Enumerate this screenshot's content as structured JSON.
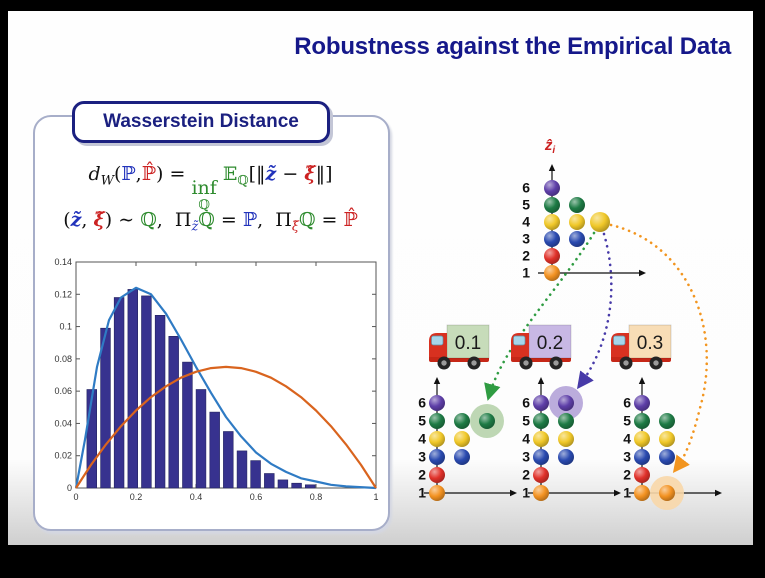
{
  "title": "Robustness against the Empirical Data",
  "panel": {
    "heading": "Wasserstein Distance",
    "formula_line1": [
      {
        "t": "d",
        "c": "#111111",
        "i": 1
      },
      {
        "t": "W",
        "c": "#111111",
        "sub": 1,
        "i": 1
      },
      {
        "t": "(",
        "c": "#111111"
      },
      {
        "t": "ℙ",
        "c": "#2233bb"
      },
      {
        "t": ",",
        "c": "#111111"
      },
      {
        "t": "ℙ̂",
        "c": "#cc2222"
      },
      {
        "t": ")",
        "c": "#111111"
      },
      {
        "t": " = ",
        "c": "#111111"
      },
      {
        "t": "inf",
        "c": "#2e8b2e",
        "under": "ℚ"
      },
      {
        "t": " 𝔼",
        "c": "#2e8b2e"
      },
      {
        "t": "ℚ",
        "c": "#2e8b2e",
        "sub": 1
      },
      {
        "t": "[‖",
        "c": "#111111"
      },
      {
        "t": "z̃",
        "c": "#2233bb",
        "i": 1,
        "b": 1
      },
      {
        "t": " − ",
        "c": "#111111"
      },
      {
        "t": "ξ̃",
        "c": "#cc2222",
        "i": 1,
        "b": 1
      },
      {
        "t": "‖]",
        "c": "#111111"
      }
    ],
    "formula_line2": [
      {
        "t": "(",
        "c": "#111111"
      },
      {
        "t": "z̃",
        "c": "#2233bb",
        "i": 1,
        "b": 1
      },
      {
        "t": ", ",
        "c": "#111111"
      },
      {
        "t": "ξ̃",
        "c": "#cc2222",
        "i": 1,
        "b": 1
      },
      {
        "t": ") ∼ ",
        "c": "#111111"
      },
      {
        "t": "ℚ",
        "c": "#2e8b2e"
      },
      {
        "t": ",  ",
        "c": "#111111"
      },
      {
        "t": "Π",
        "c": "#111111"
      },
      {
        "t": "z̃",
        "c": "#2233bb",
        "sub": 1,
        "i": 1
      },
      {
        "t": "ℚ",
        "c": "#2e8b2e"
      },
      {
        "t": " = ",
        "c": "#111111"
      },
      {
        "t": "ℙ",
        "c": "#2233bb"
      },
      {
        "t": ",  ",
        "c": "#111111"
      },
      {
        "t": "Π",
        "c": "#111111"
      },
      {
        "t": "ξ̃",
        "c": "#cc2222",
        "sub": 1,
        "i": 1
      },
      {
        "t": "ℚ",
        "c": "#2e8b2e"
      },
      {
        "t": " = ",
        "c": "#111111"
      },
      {
        "t": "ℙ̂",
        "c": "#cc2222"
      }
    ]
  },
  "chart_data": {
    "type": "bar",
    "title": "",
    "xlabel": "",
    "ylabel": "",
    "xlim": [
      0,
      1
    ],
    "ylim": [
      0,
      0.14
    ],
    "xticks": [
      "0",
      "0.2",
      "0.4",
      "0.6",
      "0.8",
      "1"
    ],
    "yticks": [
      "0",
      "0.02",
      "0.04",
      "0.06",
      "0.08",
      "0.1",
      "0.12",
      "0.14"
    ],
    "grid": false,
    "legend": "none",
    "bars": {
      "color": "#37328f",
      "bin_start": 0.03,
      "bin_width": 0.0455,
      "bar_frac": 0.72,
      "values": [
        0.061,
        0.099,
        0.118,
        0.123,
        0.119,
        0.107,
        0.094,
        0.078,
        0.061,
        0.047,
        0.035,
        0.023,
        0.017,
        0.009,
        0.005,
        0.003,
        0.002
      ]
    },
    "series": [
      {
        "name": "empirical-density-curve",
        "color": "#2f7bc4",
        "x": [
          0,
          0.03,
          0.07,
          0.11,
          0.15,
          0.2,
          0.25,
          0.3,
          0.35,
          0.4,
          0.45,
          0.5,
          0.55,
          0.6,
          0.65,
          0.7,
          0.75,
          0.8,
          0.85,
          0.9,
          1
        ],
        "y": [
          0,
          0.03,
          0.075,
          0.104,
          0.118,
          0.124,
          0.12,
          0.108,
          0.092,
          0.075,
          0.059,
          0.044,
          0.032,
          0.022,
          0.015,
          0.01,
          0.006,
          0.004,
          0.002,
          0.001,
          0
        ]
      },
      {
        "name": "alternative-density-curve",
        "color": "#d9641e",
        "x": [
          0,
          0.05,
          0.1,
          0.15,
          0.2,
          0.25,
          0.3,
          0.35,
          0.4,
          0.45,
          0.5,
          0.55,
          0.6,
          0.65,
          0.7,
          0.75,
          0.8,
          0.85,
          0.9,
          0.95,
          1
        ],
        "y": [
          0,
          0.0143,
          0.027,
          0.0383,
          0.048,
          0.0563,
          0.063,
          0.0683,
          0.072,
          0.0743,
          0.075,
          0.0743,
          0.072,
          0.0683,
          0.063,
          0.0563,
          0.048,
          0.0383,
          0.027,
          0.0143,
          0
        ]
      }
    ]
  },
  "diagram": {
    "axis_label": {
      "main": "ẑ",
      "sub": "i",
      "color": "#cc2222"
    },
    "levels": [
      "6",
      "5",
      "4",
      "3",
      "2",
      "1"
    ],
    "dot_colors": {
      "purple": "#5e3fa8",
      "green": "#1e7b45",
      "yellow": "#f0c829",
      "blue": "#2a4ab0",
      "red": "#e0312a",
      "orange": "#f39221"
    },
    "top_plot": {
      "points": [
        [
          1,
          6,
          "purple"
        ],
        [
          1,
          5,
          "green"
        ],
        [
          1,
          4,
          "yellow"
        ],
        [
          1,
          3,
          "blue"
        ],
        [
          1,
          2,
          "red"
        ],
        [
          1,
          1,
          "orange"
        ],
        [
          2,
          5,
          "green"
        ],
        [
          2,
          4,
          "yellow"
        ],
        [
          2,
          3,
          "blue"
        ],
        [
          3,
          4,
          "yellow"
        ]
      ]
    },
    "trucks": [
      {
        "label": "0.1",
        "box": "#c7dcba"
      },
      {
        "label": "0.2",
        "box": "#c8b8e4"
      },
      {
        "label": "0.3",
        "box": "#f8ddb6"
      }
    ],
    "bottom_plots": [
      {
        "points": [
          [
            1,
            6,
            "purple"
          ],
          [
            1,
            5,
            "green"
          ],
          [
            1,
            4,
            "yellow"
          ],
          [
            1,
            3,
            "blue"
          ],
          [
            1,
            2,
            "red"
          ],
          [
            1,
            1,
            "orange"
          ],
          [
            2,
            5,
            "green"
          ],
          [
            2,
            4,
            "yellow"
          ],
          [
            2,
            3,
            "blue"
          ],
          [
            3,
            5,
            "green"
          ]
        ],
        "highlight": {
          "col": 3,
          "level": 5,
          "fill": "#b7d3ac"
        }
      },
      {
        "points": [
          [
            1,
            6,
            "purple"
          ],
          [
            1,
            5,
            "green"
          ],
          [
            1,
            4,
            "yellow"
          ],
          [
            1,
            3,
            "blue"
          ],
          [
            1,
            2,
            "red"
          ],
          [
            1,
            1,
            "orange"
          ],
          [
            2,
            6,
            "purple"
          ],
          [
            2,
            5,
            "green"
          ],
          [
            2,
            4,
            "yellow"
          ],
          [
            2,
            3,
            "blue"
          ]
        ],
        "highlight": {
          "col": 2,
          "level": 6,
          "fill": "#b4a3d8"
        }
      },
      {
        "points": [
          [
            1,
            6,
            "purple"
          ],
          [
            1,
            5,
            "green"
          ],
          [
            1,
            4,
            "yellow"
          ],
          [
            1,
            3,
            "blue"
          ],
          [
            1,
            2,
            "red"
          ],
          [
            1,
            1,
            "orange"
          ],
          [
            2,
            5,
            "green"
          ],
          [
            2,
            4,
            "yellow"
          ],
          [
            2,
            3,
            "blue"
          ],
          [
            2,
            1,
            "orange"
          ]
        ],
        "highlight": {
          "col": 2,
          "level": 1,
          "fill": "#f8d7a8"
        }
      }
    ],
    "transport_paths": [
      {
        "name": "path-to-plot-1",
        "color": "#2f9c42"
      },
      {
        "name": "path-to-plot-2",
        "color": "#473aa8"
      },
      {
        "name": "path-to-plot-3",
        "color": "#f2951f"
      }
    ]
  }
}
